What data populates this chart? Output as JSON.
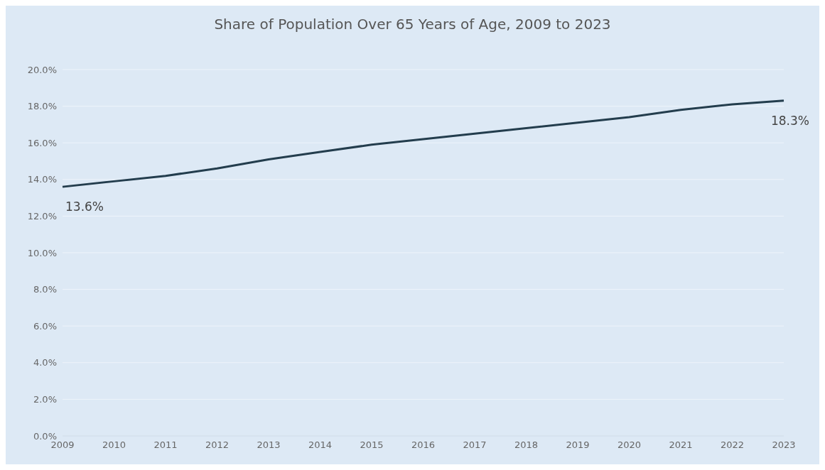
{
  "chart_data": {
    "type": "line",
    "title": "Share of Population Over 65 Years of Age, 2009 to 2023",
    "categories": [
      "2009",
      "2010",
      "2011",
      "2012",
      "2013",
      "2014",
      "2015",
      "2016",
      "2017",
      "2018",
      "2019",
      "2020",
      "2021",
      "2022",
      "2023"
    ],
    "series": [
      {
        "color": "#233d4d",
        "values": [
          13.6,
          13.9,
          14.2,
          14.6,
          15.1,
          15.5,
          15.9,
          16.2,
          16.5,
          16.8,
          17.1,
          17.4,
          17.8,
          18.1,
          18.3
        ],
        "value_labels": [
          "13.6%",
          null,
          null,
          null,
          null,
          null,
          null,
          null,
          null,
          null,
          null,
          null,
          null,
          null,
          "18.3%"
        ]
      }
    ],
    "ylim": [
      0,
      20
    ],
    "yticks": [
      {
        "value": 0,
        "label": "0.0%"
      },
      {
        "value": 2,
        "label": "2.0%"
      },
      {
        "value": 4,
        "label": "4.0%"
      },
      {
        "value": 6,
        "label": "6.0%"
      },
      {
        "value": 8,
        "label": "8.0%"
      },
      {
        "value": 10,
        "label": "10.0%"
      },
      {
        "value": 12,
        "label": "12.0%"
      },
      {
        "value": 14,
        "label": "14.0%"
      },
      {
        "value": 16,
        "label": "16.0%"
      },
      {
        "value": 18,
        "label": "18.0%"
      },
      {
        "value": 20,
        "label": "20.0%"
      }
    ],
    "grid": "y",
    "marker": "none"
  }
}
